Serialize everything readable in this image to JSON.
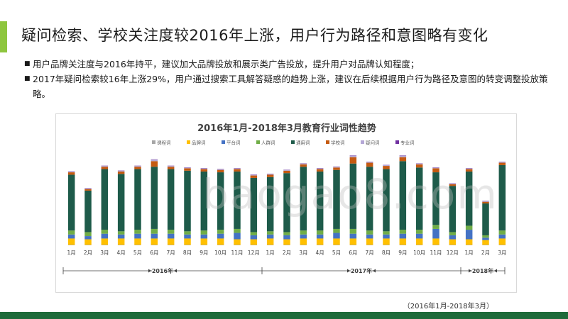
{
  "slide": {
    "title": "疑问检索、学校关注度较2016年上涨，用户行为路径和意图略有变化",
    "bullets": [
      "用户品牌关注度与2016年持平，建议加大品牌投放和展示类广告投放，提升用户对品牌认知程度；",
      "2017年疑问检索较16年上涨29%，用户通过搜索工具解答疑惑的趋势上涨，建议在后续根据用户行为路径及意图的转变调整投放策略。"
    ],
    "caption": "（2016年1月-2018年3月）",
    "watermark": "baogao8.com",
    "accent_color": "#8ec63f",
    "footer_color": "#1e6b3a"
  },
  "chart_data": {
    "type": "bar",
    "stacked": true,
    "title": "2016年1月-2018年3月教育行业词性趋势",
    "legend_position": "top",
    "grid": false,
    "categories": [
      "1月",
      "2月",
      "3月",
      "4月",
      "5月",
      "6月",
      "7月",
      "8月",
      "9月",
      "10月",
      "11月",
      "12月",
      "1月",
      "2月",
      "3月",
      "4月",
      "5月",
      "6月",
      "7月",
      "8月",
      "9月",
      "10月",
      "11月",
      "12月",
      "1月",
      "2月",
      "3月"
    ],
    "year_groups": [
      {
        "label": "2016年",
        "from": 0,
        "to": 11
      },
      {
        "label": "2017年",
        "from": 12,
        "to": 23
      },
      {
        "label": "2018年",
        "from": 24,
        "to": 26
      }
    ],
    "ylim": [
      0,
      120
    ],
    "series": [
      {
        "name": "课程词",
        "color": "#a6a6a6",
        "values": [
          0.5,
          0.5,
          0.5,
          0.5,
          0.5,
          0.5,
          0.5,
          0.5,
          0.5,
          0.5,
          0.5,
          0.5,
          0.5,
          0.5,
          0.5,
          0.5,
          0.5,
          0.5,
          0.5,
          0.5,
          0.5,
          0.5,
          0.5,
          0.5,
          0.5,
          0.5,
          0.5
        ]
      },
      {
        "name": "品牌词",
        "color": "#ffc000",
        "values": [
          8,
          7,
          8,
          8,
          8,
          8,
          8,
          8,
          8,
          8,
          7,
          7,
          8,
          7,
          8,
          8,
          8,
          8,
          8,
          8,
          8,
          8,
          8,
          7,
          7,
          6,
          8
        ]
      },
      {
        "name": "平台词",
        "color": "#4472c4",
        "values": [
          5,
          4,
          6,
          5,
          6,
          6,
          6,
          5,
          5,
          6,
          8,
          5,
          5,
          5,
          5,
          5,
          7,
          6,
          5,
          5,
          6,
          6,
          12,
          5,
          12,
          3,
          5
        ]
      },
      {
        "name": "人群词",
        "color": "#70ad47",
        "values": [
          5,
          5,
          5,
          4,
          5,
          6,
          5,
          4,
          5,
          5,
          5,
          4,
          4,
          4,
          5,
          5,
          5,
          6,
          5,
          4,
          5,
          5,
          5,
          4,
          5,
          3,
          5
        ]
      },
      {
        "name": "通用词",
        "color": "#1e5b4a",
        "values": [
          70,
          52,
          76,
          72,
          76,
          78,
          76,
          76,
          74,
          72,
          72,
          68,
          68,
          74,
          80,
          74,
          74,
          82,
          80,
          78,
          86,
          78,
          66,
          58,
          68,
          40,
          82
        ]
      },
      {
        "name": "学校词",
        "color": "#c55a11",
        "values": [
          3,
          2,
          3,
          3,
          3,
          7,
          3,
          3,
          3,
          3,
          3,
          3,
          3,
          3,
          3,
          3,
          3,
          8,
          5,
          4,
          5,
          4,
          5,
          2,
          3,
          2,
          3
        ]
      },
      {
        "name": "疑问词",
        "color": "#b4a7d6",
        "values": [
          1,
          1,
          1,
          1,
          1,
          2,
          1,
          1,
          1,
          1,
          1,
          1,
          1,
          1,
          1,
          1,
          1,
          2,
          1,
          1,
          2,
          1,
          1,
          1,
          1,
          1,
          1
        ]
      },
      {
        "name": "专业词",
        "color": "#7030a0",
        "values": [
          0.3,
          0.3,
          0.3,
          0.3,
          0.3,
          0.3,
          0.3,
          0.3,
          0.3,
          0.3,
          0.3,
          0.3,
          0.3,
          0.3,
          0.3,
          0.3,
          0.3,
          0.3,
          0.3,
          0.3,
          0.3,
          0.3,
          0.3,
          0.3,
          0.3,
          0.3,
          0.3
        ]
      }
    ]
  }
}
